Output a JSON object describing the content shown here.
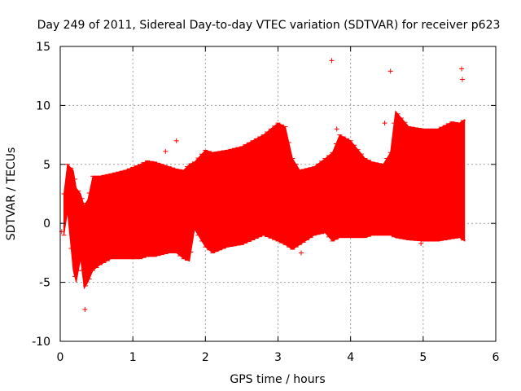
{
  "chart_data": {
    "type": "scatter",
    "title": "Day 249 of 2011, Sidereal Day-to-day VTEC variation (SDTVAR) for receiver p623",
    "xlabel": "GPS time / hours",
    "ylabel": "SDTVAR / TECUs",
    "xlim": [
      0,
      6
    ],
    "ylim": [
      -10,
      15
    ],
    "xticks": [
      0,
      1,
      2,
      3,
      4,
      5,
      6
    ],
    "yticks": [
      -10,
      -5,
      0,
      5,
      10,
      15
    ],
    "grid": true,
    "series_color": "#ff0000",
    "series": [
      {
        "name": "SDTVAR",
        "style": "error bars (min/max envelope per time step)",
        "x": [
          0.05,
          0.1,
          0.18,
          0.22,
          0.28,
          0.33,
          0.38,
          0.45,
          0.55,
          0.7,
          0.9,
          1.1,
          1.2,
          1.3,
          1.5,
          1.6,
          1.7,
          1.78,
          1.85,
          2.0,
          2.1,
          2.3,
          2.5,
          2.8,
          3.0,
          3.1,
          3.2,
          3.3,
          3.5,
          3.65,
          3.75,
          3.85,
          4.0,
          4.2,
          4.3,
          4.45,
          4.55,
          4.62,
          4.8,
          5.0,
          5.2,
          5.4,
          5.5,
          5.57
        ],
        "upper": [
          2.5,
          5.0,
          4.5,
          3.0,
          2.5,
          1.5,
          2.0,
          4.0,
          4.0,
          4.2,
          4.5,
          5.0,
          5.3,
          5.2,
          4.8,
          4.6,
          4.5,
          5.0,
          5.2,
          6.2,
          6.0,
          6.2,
          6.5,
          7.5,
          8.5,
          8.2,
          5.5,
          4.5,
          4.8,
          5.5,
          6.0,
          7.5,
          7.0,
          5.5,
          5.2,
          5.0,
          6.0,
          9.5,
          8.2,
          8.0,
          8.0,
          8.6,
          8.5,
          8.8
        ],
        "lower": [
          -1.0,
          1.0,
          -4.0,
          -5.0,
          -3.0,
          -5.5,
          -5.0,
          -4.0,
          -3.5,
          -3.0,
          -3.0,
          -3.0,
          -2.8,
          -2.8,
          -2.5,
          -2.5,
          -3.0,
          -3.2,
          -0.5,
          -2.0,
          -2.5,
          -2.0,
          -1.8,
          -1.0,
          -1.5,
          -1.8,
          -2.2,
          -1.8,
          -1.0,
          -0.8,
          -1.5,
          -1.2,
          -1.2,
          -1.2,
          -1.0,
          -1.0,
          -1.0,
          -1.2,
          -1.4,
          -1.5,
          -1.5,
          -1.3,
          -1.2,
          -1.5
        ]
      }
    ],
    "outliers": [
      {
        "x": 0.02,
        "y": -0.7
      },
      {
        "x": 0.34,
        "y": -7.3
      },
      {
        "x": 1.45,
        "y": 6.1
      },
      {
        "x": 1.6,
        "y": 7.0
      },
      {
        "x": 3.32,
        "y": -2.5
      },
      {
        "x": 3.74,
        "y": 13.8
      },
      {
        "x": 3.81,
        "y": 8.0
      },
      {
        "x": 4.47,
        "y": 8.5
      },
      {
        "x": 4.55,
        "y": 12.9
      },
      {
        "x": 4.97,
        "y": -1.7
      },
      {
        "x": 5.53,
        "y": 13.1
      },
      {
        "x": 5.54,
        "y": 12.2
      }
    ]
  }
}
